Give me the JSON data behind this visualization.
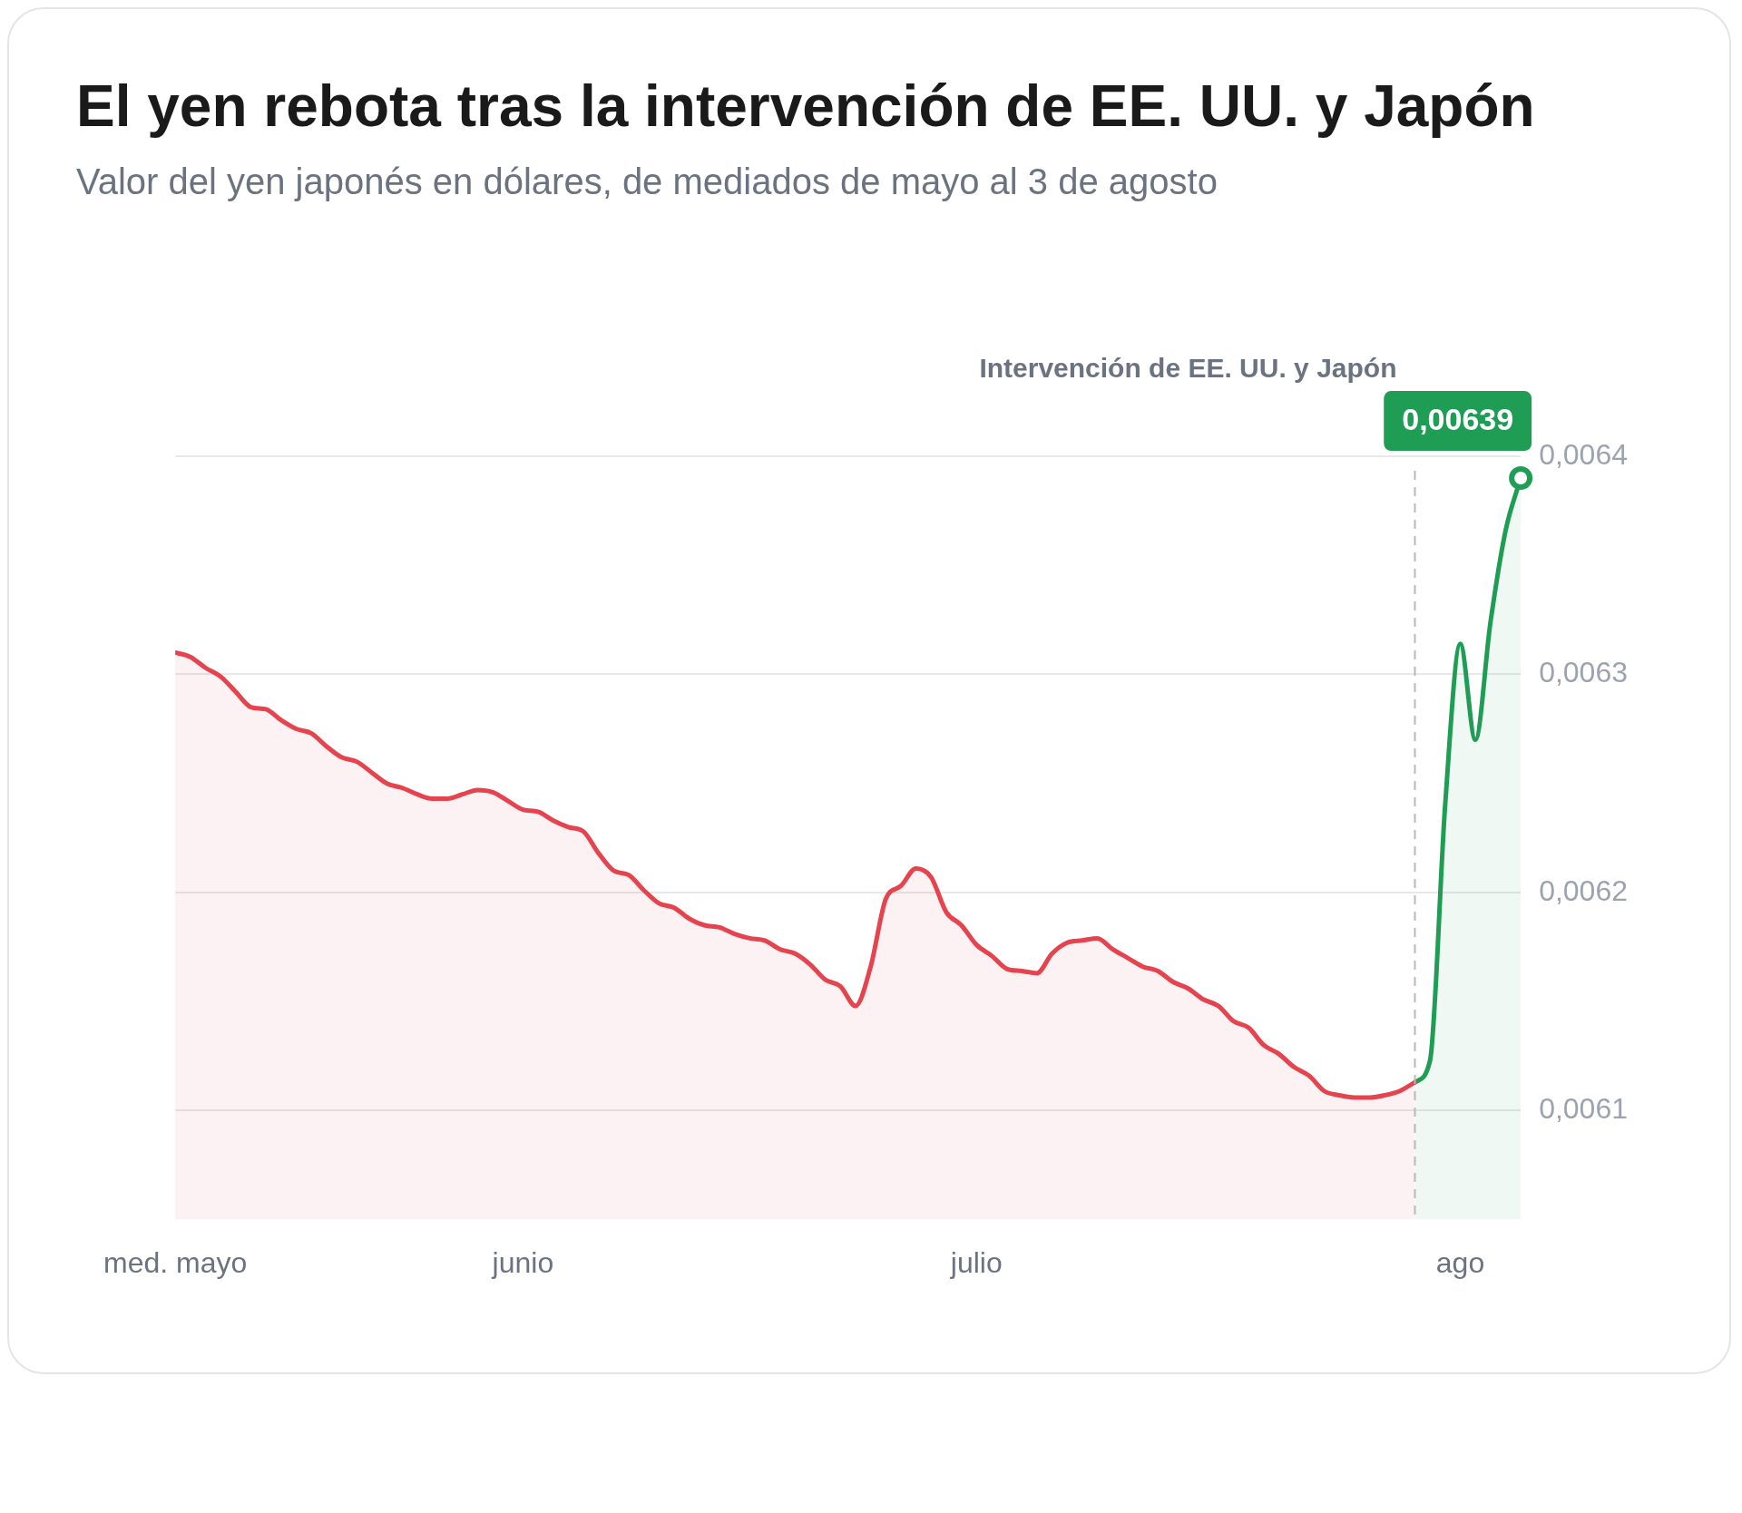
{
  "chart_data": {
    "type": "area",
    "title": "El yen rebota tras la intervención de EE. UU. y Japón",
    "subtitle": "Valor del yen japonés en dólares, de mediados de mayo al 3 de agosto",
    "categories": [
      "med. mayo",
      null,
      null,
      null,
      null,
      null,
      null,
      null,
      null,
      null,
      null,
      null,
      null,
      null,
      null,
      null,
      null,
      null,
      null,
      null,
      null,
      null,
      null,
      "junio",
      null,
      null,
      null,
      null,
      null,
      null,
      null,
      null,
      null,
      null,
      null,
      null,
      null,
      null,
      null,
      null,
      null,
      null,
      null,
      null,
      null,
      null,
      null,
      null,
      null,
      null,
      null,
      null,
      null,
      "julio",
      null,
      null,
      null,
      null,
      null,
      null,
      null,
      null,
      null,
      null,
      null,
      null,
      null,
      null,
      null,
      null,
      null,
      null,
      null,
      null,
      null,
      null,
      null,
      null,
      null,
      null,
      null,
      null,
      null,
      null,
      null,
      "ago",
      null,
      null,
      null,
      null
    ],
    "series": [
      {
        "color": "#e5444f",
        "values": [
          0.00631,
          0.006308,
          0.006303,
          0.006299,
          0.006292,
          0.006285,
          0.006284,
          0.006279,
          0.006275,
          0.006273,
          0.006267,
          0.006262,
          0.00626,
          0.006255,
          0.00625,
          0.006248,
          0.006245,
          0.006243,
          0.006243,
          0.006245,
          0.006247,
          0.006246,
          0.006242,
          0.006238,
          0.006237,
          0.006233,
          0.00623,
          0.006228,
          0.006218,
          0.00621,
          0.006208,
          0.006201,
          0.006195,
          0.006193,
          0.006188,
          0.006185,
          0.006184,
          0.006181,
          0.006179,
          0.006178,
          0.006174,
          0.006172,
          0.006167,
          0.00616,
          0.006157,
          0.006148,
          0.006166,
          0.006197,
          0.006203,
          0.006211,
          0.006207,
          0.006191,
          0.006185,
          0.006176,
          0.006171,
          0.006165,
          0.006164,
          0.006163,
          0.006172,
          0.006177,
          0.006178,
          0.006179,
          0.006174,
          0.00617,
          0.006166,
          0.006164,
          0.006159,
          0.006156,
          0.006151,
          0.006148,
          0.006141,
          0.006138,
          0.00613,
          0.006126,
          0.00612,
          0.006116,
          0.006109,
          0.006107,
          0.006106,
          0.006106,
          0.006107,
          0.006109,
          0.006113,
          null,
          null,
          null,
          null,
          null,
          null,
          null
        ]
      },
      {
        "color": "#1f9d55",
        "values": [
          null,
          null,
          null,
          null,
          null,
          null,
          null,
          null,
          null,
          null,
          null,
          null,
          null,
          null,
          null,
          null,
          null,
          null,
          null,
          null,
          null,
          null,
          null,
          null,
          null,
          null,
          null,
          null,
          null,
          null,
          null,
          null,
          null,
          null,
          null,
          null,
          null,
          null,
          null,
          null,
          null,
          null,
          null,
          null,
          null,
          null,
          null,
          null,
          null,
          null,
          null,
          null,
          null,
          null,
          null,
          null,
          null,
          null,
          null,
          null,
          null,
          null,
          null,
          null,
          null,
          null,
          null,
          null,
          null,
          null,
          null,
          null,
          null,
          null,
          null,
          null,
          null,
          null,
          null,
          null,
          null,
          null,
          0.006113,
          0.006123,
          0.00624,
          0.006314,
          0.00627,
          0.006324,
          0.006366,
          0.00639
        ],
        "value_labels": [
          null,
          null,
          null,
          null,
          null,
          null,
          null,
          null,
          null,
          null,
          null,
          null,
          null,
          null,
          null,
          null,
          null,
          null,
          null,
          null,
          null,
          null,
          null,
          null,
          null,
          null,
          null,
          null,
          null,
          null,
          null,
          null,
          null,
          null,
          null,
          null,
          null,
          null,
          null,
          null,
          null,
          null,
          null,
          null,
          null,
          null,
          null,
          null,
          null,
          null,
          null,
          null,
          null,
          null,
          null,
          null,
          null,
          null,
          null,
          null,
          null,
          null,
          null,
          null,
          null,
          null,
          null,
          null,
          null,
          null,
          null,
          null,
          null,
          null,
          null,
          null,
          null,
          null,
          null,
          null,
          null,
          null,
          null,
          null,
          null,
          null,
          null,
          null,
          null,
          "0,00639"
        ]
      }
    ],
    "ylim": [
      0.00605,
      0.0064
    ],
    "yticks": [
      {
        "value": 0.0061,
        "label": "0,0061"
      },
      {
        "value": 0.0062,
        "label": "0,0062"
      },
      {
        "value": 0.0063,
        "label": "0,0063"
      },
      {
        "value": 0.0064,
        "label": "0,0064"
      }
    ],
    "ref_lines": [
      {
        "axis": "x",
        "label": "Intervención de EE. UU. y Japón",
        "color": "#b8b8b8",
        "line_style": "dashed"
      }
    ],
    "grid": "y",
    "legend": false,
    "line_style": "solid",
    "marker": "none"
  }
}
